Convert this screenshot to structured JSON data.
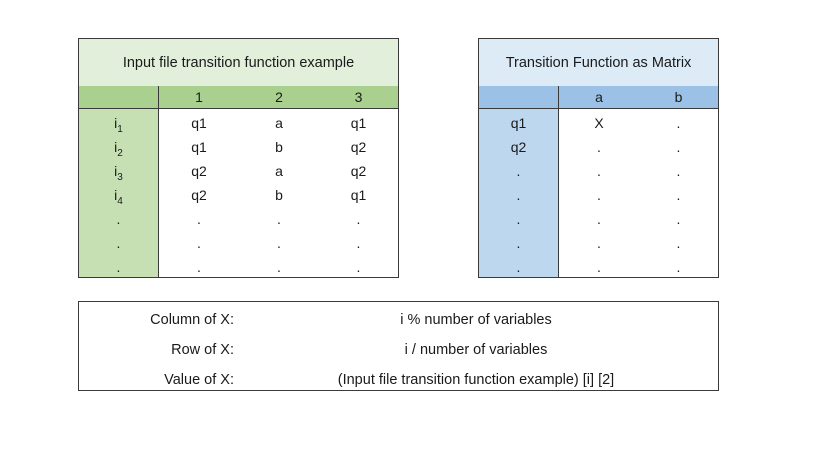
{
  "left_table": {
    "title": "Input file transition function example",
    "headers": [
      "",
      "1",
      "2",
      "3"
    ],
    "row_labels": [
      "i1",
      "i2",
      "i3",
      "i4",
      ".",
      ".",
      "."
    ],
    "row_label_parts": [
      {
        "base": "i",
        "sub": "1"
      },
      {
        "base": "i",
        "sub": "2"
      },
      {
        "base": "i",
        "sub": "3"
      },
      {
        "base": "i",
        "sub": "4"
      },
      {
        "base": ".",
        "sub": ""
      },
      {
        "base": ".",
        "sub": ""
      },
      {
        "base": ".",
        "sub": ""
      }
    ],
    "rows": [
      [
        "q1",
        "a",
        "q1"
      ],
      [
        "q1",
        "b",
        "q2"
      ],
      [
        "q2",
        "a",
        "q2"
      ],
      [
        "q2",
        "b",
        "q1"
      ],
      [
        ".",
        ".",
        "."
      ],
      [
        ".",
        ".",
        "."
      ],
      [
        ".",
        ".",
        "."
      ]
    ],
    "colors": {
      "title_bg": "#e2efda",
      "header_bg": "#a9d08e",
      "row_label_bg": "#c6e0b4"
    }
  },
  "right_table": {
    "title": "Transition Function as Matrix",
    "headers": [
      "",
      "a",
      "b"
    ],
    "row_labels": [
      "q1",
      "q2",
      ".",
      ".",
      ".",
      ".",
      "."
    ],
    "rows": [
      [
        "X",
        "."
      ],
      [
        ".",
        "."
      ],
      [
        ".",
        "."
      ],
      [
        ".",
        "."
      ],
      [
        ".",
        "."
      ],
      [
        ".",
        "."
      ],
      [
        ".",
        "."
      ]
    ],
    "colors": {
      "title_bg": "#ddebf7",
      "header_bg": "#9bc2e6",
      "row_label_bg": "#bdd7ee"
    }
  },
  "formulas": [
    {
      "label": "Column of X:",
      "value": "i % number of variables"
    },
    {
      "label": "Row of X:",
      "value": "i / number of variables"
    },
    {
      "label": "Value of X:",
      "value": "(Input file transition function example) [i] [2]"
    }
  ]
}
